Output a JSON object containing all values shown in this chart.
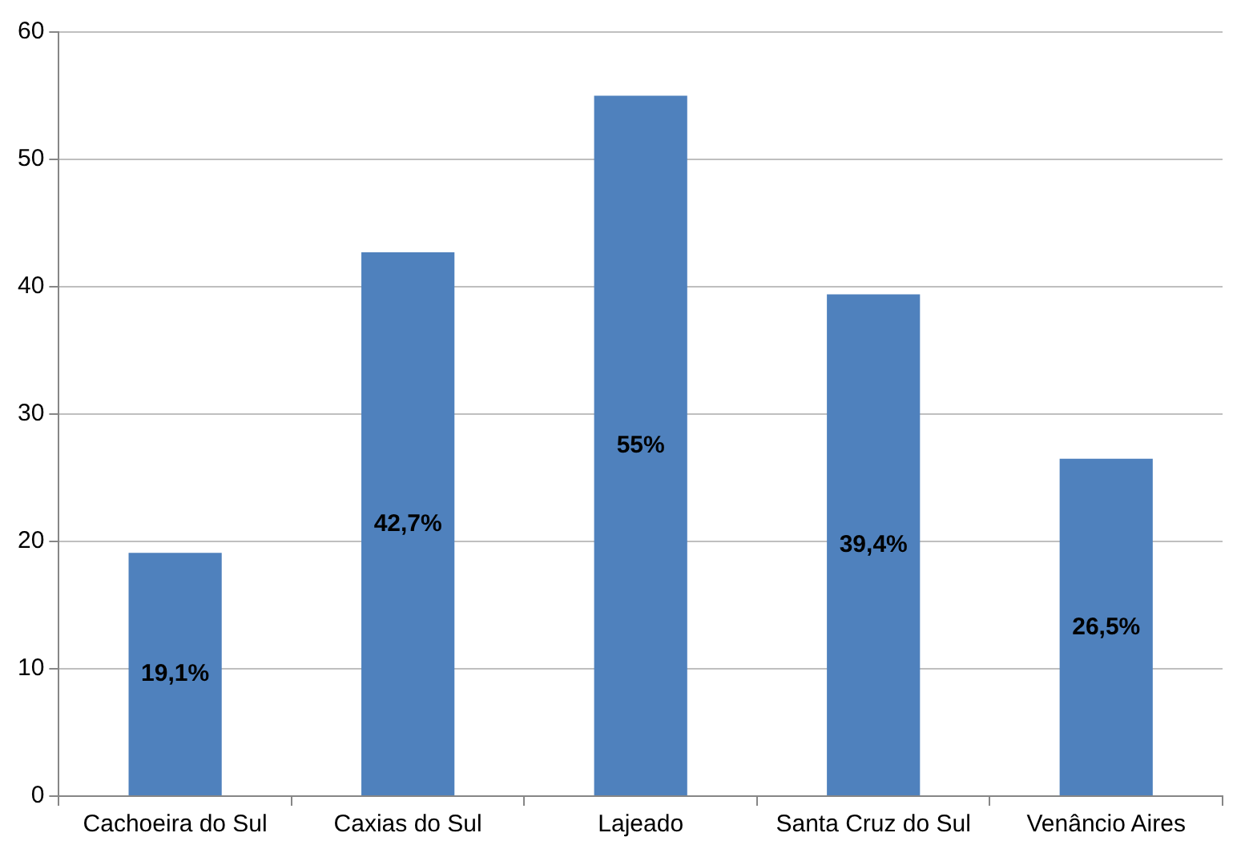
{
  "chart_data": {
    "type": "bar",
    "categories": [
      "Cachoeira do Sul",
      "Caxias do Sul",
      "Lajeado",
      "Santa Cruz do Sul",
      "Venâncio Aires"
    ],
    "values": [
      19.1,
      42.7,
      55,
      39.4,
      26.5
    ],
    "value_labels": [
      "19,1%",
      "42,7%",
      "55%",
      "39,4%",
      "26,5%"
    ],
    "color": "#4f81bd",
    "ylim": [
      0,
      60
    ],
    "yticks": [
      0,
      10,
      20,
      30,
      40,
      50,
      60
    ],
    "grid": "y",
    "legend": false
  }
}
